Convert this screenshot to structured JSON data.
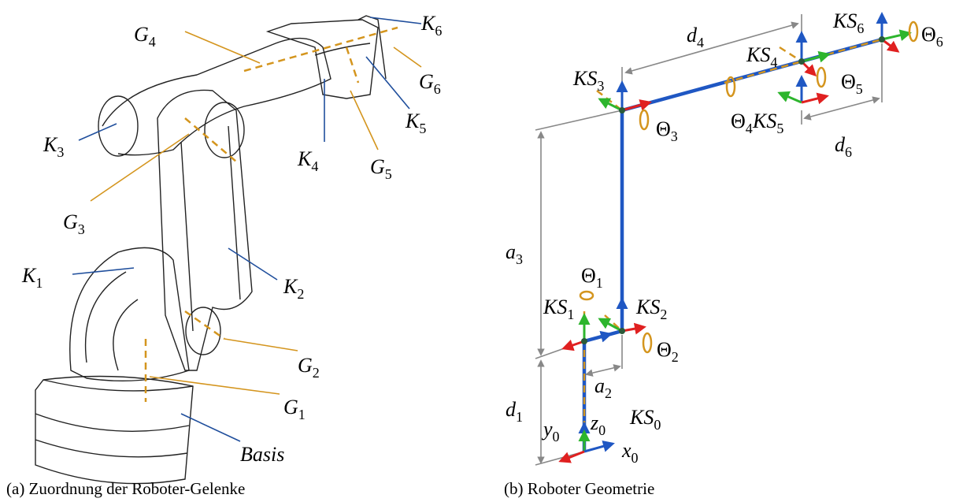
{
  "left": {
    "caption": "(a) Zuordnung der Roboter-Gelenke",
    "labels": [
      {
        "main": "G",
        "sub": "4"
      },
      {
        "main": "K",
        "sub": "6"
      },
      {
        "main": "G",
        "sub": "6"
      },
      {
        "main": "K",
        "sub": "3"
      },
      {
        "main": "K",
        "sub": "5"
      },
      {
        "main": "K",
        "sub": "4"
      },
      {
        "main": "G",
        "sub": "5"
      },
      {
        "main": "G",
        "sub": "3"
      },
      {
        "main": "K",
        "sub": "1"
      },
      {
        "main": "K",
        "sub": "2"
      },
      {
        "main": "G",
        "sub": "2"
      },
      {
        "main": "G",
        "sub": "1"
      },
      {
        "main": "Basis",
        "sub": ""
      }
    ]
  },
  "right": {
    "caption": "(b) Roboter Geometrie",
    "labels": [
      {
        "main": "KS",
        "sub": "3"
      },
      {
        "main": "d",
        "sub": "4"
      },
      {
        "main": "KS",
        "sub": "6"
      },
      {
        "main": "Θ",
        "sub": "6"
      },
      {
        "main": "KS",
        "sub": "4"
      },
      {
        "main": "Θ",
        "sub": "5"
      },
      {
        "main": "Θ",
        "sub": "4"
      },
      {
        "main": "KS",
        "sub": "5"
      },
      {
        "main": "d",
        "sub": "6"
      },
      {
        "main": "Θ",
        "sub": "3"
      },
      {
        "main": "a",
        "sub": "3"
      },
      {
        "main": "Θ",
        "sub": "1"
      },
      {
        "main": "KS",
        "sub": "1"
      },
      {
        "main": "KS",
        "sub": "2"
      },
      {
        "main": "Θ",
        "sub": "2"
      },
      {
        "main": "a",
        "sub": "2"
      },
      {
        "main": "d",
        "sub": "1"
      },
      {
        "main": "z",
        "sub": "0"
      },
      {
        "main": "KS",
        "sub": "0"
      },
      {
        "main": "y",
        "sub": "0"
      },
      {
        "main": "x",
        "sub": "0"
      }
    ]
  }
}
